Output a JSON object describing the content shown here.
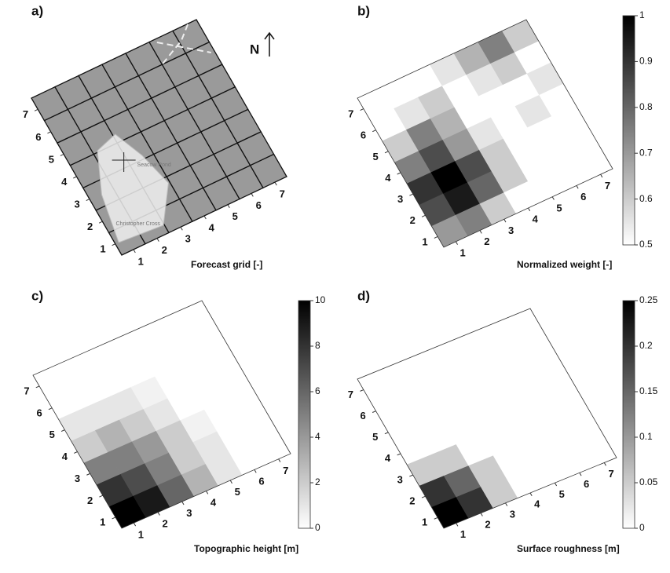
{
  "chart_data": [
    {
      "type": "grid",
      "label": "a)",
      "xlabel": "Forecast grid [-]",
      "xticks": [
        1,
        2,
        3,
        4,
        5,
        6,
        7
      ],
      "yticks": [
        1,
        2,
        3,
        4,
        5,
        6,
        7
      ],
      "north": "N",
      "places": [
        "Seacow Pond",
        "Christopher Cross"
      ],
      "color": "#9a9a9a"
    },
    {
      "type": "heatmap",
      "label": "b)",
      "xlabel": "Normalized weight [-]",
      "xticks": [
        1,
        2,
        3,
        4,
        5,
        6,
        7
      ],
      "yticks": [
        1,
        2,
        3,
        4,
        5,
        6,
        7
      ],
      "zlim": [
        0.5,
        1
      ],
      "zticks": [
        0.5,
        0.6,
        0.7,
        0.8,
        0.9,
        1
      ],
      "values": [
        [
          0.7,
          0.75,
          0.6,
          0.5,
          0.5,
          0.5,
          0.5
        ],
        [
          0.85,
          0.95,
          0.8,
          0.6,
          0.5,
          0.5,
          0.5
        ],
        [
          0.9,
          1,
          0.85,
          0.6,
          0.5,
          0.5,
          0.5
        ],
        [
          0.75,
          0.85,
          0.7,
          0.55,
          0.5,
          0.55,
          0.5
        ],
        [
          0.6,
          0.75,
          0.65,
          0.5,
          0.5,
          0.5,
          0.55
        ],
        [
          0.5,
          0.55,
          0.6,
          0.5,
          0.55,
          0.6,
          0.5
        ],
        [
          0.5,
          0.5,
          0.5,
          0.55,
          0.65,
          0.75,
          0.6
        ]
      ]
    },
    {
      "type": "heatmap",
      "label": "c)",
      "xlabel": "Topographic height [m]",
      "xticks": [
        1,
        2,
        3,
        4,
        5,
        6,
        7
      ],
      "yticks": [
        1,
        2,
        3,
        4,
        5,
        6,
        7
      ],
      "zlim": [
        0,
        10
      ],
      "zticks": [
        0,
        2,
        4,
        6,
        8,
        10
      ],
      "values": [
        [
          10,
          9,
          6,
          3,
          1,
          0,
          0
        ],
        [
          8,
          7,
          5,
          2,
          1,
          0,
          0
        ],
        [
          5,
          5,
          4,
          2,
          0.5,
          0,
          0
        ],
        [
          2,
          3,
          2,
          1,
          0,
          0,
          0
        ],
        [
          1,
          1,
          1,
          0.5,
          0,
          0,
          0
        ],
        [
          0,
          0,
          0,
          0,
          0,
          0,
          0
        ],
        [
          0,
          0,
          0,
          0,
          0,
          0,
          0
        ]
      ]
    },
    {
      "type": "heatmap",
      "label": "d)",
      "xlabel": "Surface roughness [m]",
      "xticks": [
        1,
        2,
        3,
        4,
        5,
        6,
        7
      ],
      "yticks": [
        1,
        2,
        3,
        4,
        5,
        6,
        7
      ],
      "zlim": [
        0,
        0.25
      ],
      "zticks": [
        0,
        0.05,
        0.1,
        0.15,
        0.2,
        0.25
      ],
      "values": [
        [
          0.25,
          0.2,
          0.05,
          0,
          0,
          0,
          0
        ],
        [
          0.2,
          0.15,
          0.05,
          0,
          0,
          0,
          0
        ],
        [
          0.05,
          0.05,
          0,
          0,
          0,
          0,
          0
        ],
        [
          0,
          0,
          0,
          0,
          0,
          0,
          0
        ],
        [
          0,
          0,
          0,
          0,
          0,
          0,
          0
        ],
        [
          0,
          0,
          0,
          0,
          0,
          0,
          0
        ],
        [
          0,
          0,
          0,
          0,
          0,
          0,
          0
        ]
      ]
    }
  ]
}
